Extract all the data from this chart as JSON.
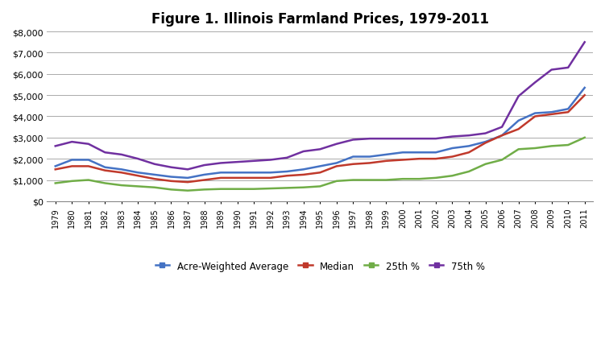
{
  "years": [
    1979,
    1980,
    1981,
    1982,
    1983,
    1984,
    1985,
    1986,
    1987,
    1988,
    1989,
    1990,
    1991,
    1992,
    1993,
    1994,
    1995,
    1996,
    1997,
    1998,
    1999,
    2000,
    2001,
    2002,
    2003,
    2004,
    2005,
    2006,
    2007,
    2008,
    2009,
    2010,
    2011
  ],
  "acre_weighted_avg": [
    1650,
    1950,
    1950,
    1600,
    1500,
    1350,
    1250,
    1150,
    1100,
    1250,
    1350,
    1350,
    1350,
    1350,
    1400,
    1500,
    1650,
    1800,
    2100,
    2100,
    2200,
    2300,
    2300,
    2300,
    2500,
    2600,
    2800,
    3100,
    3800,
    4150,
    4200,
    4350,
    5350
  ],
  "median": [
    1500,
    1650,
    1650,
    1450,
    1350,
    1200,
    1050,
    950,
    900,
    1000,
    1100,
    1100,
    1100,
    1100,
    1200,
    1250,
    1350,
    1650,
    1750,
    1800,
    1900,
    1950,
    2000,
    2000,
    2100,
    2300,
    2750,
    3100,
    3400,
    4000,
    4100,
    4200,
    5000
  ],
  "pct25": [
    850,
    950,
    1000,
    850,
    750,
    700,
    650,
    550,
    500,
    550,
    575,
    575,
    575,
    600,
    625,
    650,
    700,
    950,
    1000,
    1000,
    1000,
    1050,
    1050,
    1100,
    1200,
    1400,
    1750,
    1950,
    2450,
    2500,
    2600,
    2650,
    3000
  ],
  "pct75": [
    2600,
    2800,
    2700,
    2300,
    2200,
    2000,
    1750,
    1600,
    1500,
    1700,
    1800,
    1850,
    1900,
    1950,
    2050,
    2350,
    2450,
    2700,
    2900,
    2950,
    2950,
    2950,
    2950,
    2950,
    3050,
    3100,
    3200,
    3500,
    4950,
    5600,
    6200,
    6300,
    7500
  ],
  "title": "Figure 1. Illinois Farmland Prices, 1979-2011",
  "ylim": [
    0,
    8000
  ],
  "yticks": [
    0,
    1000,
    2000,
    3000,
    4000,
    5000,
    6000,
    7000,
    8000
  ],
  "ytick_labels": [
    "$0",
    "$1,000",
    "$2,000",
    "$3,000",
    "$4,000",
    "$5,000",
    "$6,000",
    "$7,000",
    "$8,000"
  ],
  "legend_labels": [
    "Acre-Weighted Average",
    "Median",
    "25th %",
    "75th %"
  ],
  "line_colors": [
    "#4472C4",
    "#C0392B",
    "#70AD47",
    "#7030A0"
  ],
  "background_color": "#FFFFFF",
  "grid_color": "#AAAAAA",
  "line_width": 1.8
}
